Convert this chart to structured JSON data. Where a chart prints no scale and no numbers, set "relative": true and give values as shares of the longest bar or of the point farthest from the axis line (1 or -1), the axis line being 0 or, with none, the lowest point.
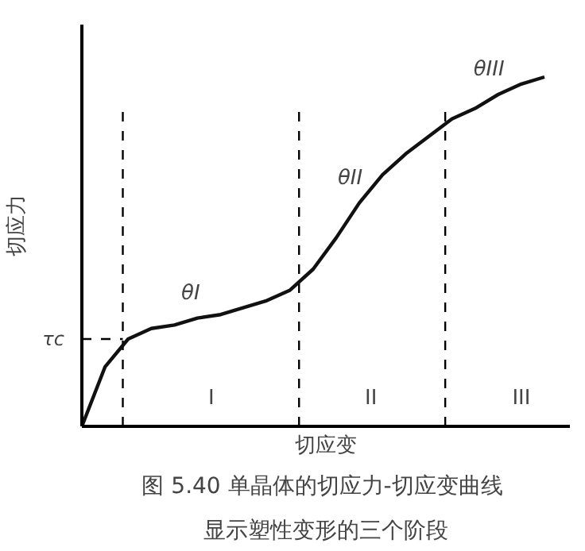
{
  "chart_data": {
    "type": "line",
    "relative": true,
    "xlabel": "切应变",
    "ylabel": "切应力",
    "title": "图 5.40  单晶体的切应力-切应变曲线",
    "subtitle": "显示塑性变形的三个阶段",
    "categories": [
      null,
      null,
      null,
      null,
      null,
      null,
      null,
      null,
      null,
      null,
      null,
      null,
      null,
      null,
      null,
      null,
      null,
      null,
      null,
      null,
      null
    ],
    "series": [
      {
        "color": "#111111",
        "values": [
          0,
          0.17,
          0.25,
          0.28,
          0.29,
          0.31,
          0.32,
          0.34,
          0.36,
          0.39,
          0.45,
          0.54,
          0.64,
          0.72,
          0.78,
          0.83,
          0.88,
          0.91,
          0.95,
          0.98,
          1
        ]
      }
    ],
    "ref_lines": [
      {
        "axis": "y",
        "value": 0.25,
        "label": "τc",
        "line_style": "dashed"
      }
    ],
    "annotations": [
      "θI",
      "θII",
      "θIII",
      "I",
      "II",
      "III"
    ],
    "grid": false,
    "line_style": "solid"
  }
}
